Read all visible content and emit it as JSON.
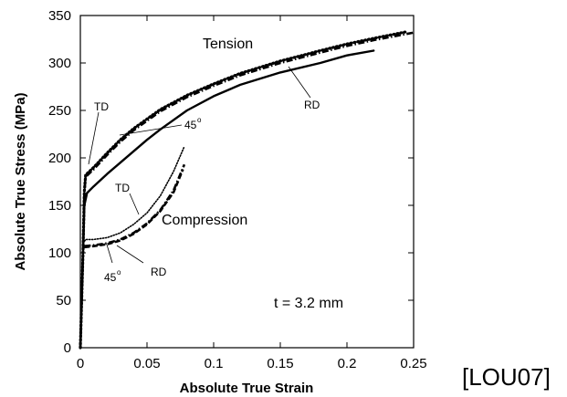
{
  "chart_data": {
    "type": "line",
    "title": "",
    "xlabel": "Absolute True  Strain",
    "ylabel": "Absolute True  Stress (MPa)",
    "xlim": [
      0,
      0.25
    ],
    "ylim": [
      0,
      350
    ],
    "xticks": [
      0,
      0.05,
      0.1,
      0.15,
      0.2,
      0.25
    ],
    "xtick_labels": [
      "0",
      "0.05",
      "0.1",
      "0.15",
      "0.2",
      "0.25"
    ],
    "yticks": [
      0,
      50,
      100,
      150,
      200,
      250,
      300,
      350
    ],
    "ytick_labels": [
      "0",
      "50",
      "100",
      "150",
      "200",
      "250",
      "300",
      "350"
    ],
    "grid": false,
    "series": [
      {
        "name": "RD",
        "group": "Tension",
        "style": "solid",
        "points": [
          [
            0,
            0
          ],
          [
            0.002,
            100
          ],
          [
            0.003,
            150
          ],
          [
            0.005,
            163
          ],
          [
            0.01,
            170
          ],
          [
            0.02,
            183
          ],
          [
            0.03,
            195
          ],
          [
            0.04,
            207
          ],
          [
            0.05,
            219
          ],
          [
            0.06,
            230
          ],
          [
            0.08,
            250
          ],
          [
            0.1,
            265
          ],
          [
            0.12,
            277
          ],
          [
            0.15,
            290
          ],
          [
            0.18,
            300
          ],
          [
            0.2,
            308
          ],
          [
            0.22,
            313
          ]
        ]
      },
      {
        "name": "TD",
        "group": "Tension",
        "style": "dotted",
        "points": [
          [
            0,
            0
          ],
          [
            0.002,
            100
          ],
          [
            0.003,
            165
          ],
          [
            0.004,
            182
          ],
          [
            0.01,
            190
          ],
          [
            0.02,
            205
          ],
          [
            0.03,
            219
          ],
          [
            0.04,
            231
          ],
          [
            0.05,
            241
          ],
          [
            0.06,
            251
          ],
          [
            0.08,
            266
          ],
          [
            0.1,
            278
          ],
          [
            0.12,
            289
          ],
          [
            0.15,
            302
          ],
          [
            0.18,
            313
          ],
          [
            0.2,
            320
          ],
          [
            0.22,
            326
          ],
          [
            0.245,
            333
          ]
        ]
      },
      {
        "name": "45°",
        "group": "Tension",
        "style": "dashdot",
        "points": [
          [
            0,
            0
          ],
          [
            0.002,
            100
          ],
          [
            0.003,
            165
          ],
          [
            0.004,
            180
          ],
          [
            0.01,
            188
          ],
          [
            0.02,
            203
          ],
          [
            0.03,
            217
          ],
          [
            0.04,
            229
          ],
          [
            0.05,
            239
          ],
          [
            0.06,
            249
          ],
          [
            0.08,
            264
          ],
          [
            0.1,
            276
          ],
          [
            0.12,
            287
          ],
          [
            0.15,
            300
          ],
          [
            0.18,
            311
          ],
          [
            0.2,
            318
          ],
          [
            0.22,
            324
          ],
          [
            0.25,
            332
          ]
        ]
      },
      {
        "name": "TD",
        "group": "Compression",
        "style": "thin-dotted",
        "points": [
          [
            0.002,
            110
          ],
          [
            0.004,
            114
          ],
          [
            0.01,
            114
          ],
          [
            0.02,
            116
          ],
          [
            0.03,
            121
          ],
          [
            0.04,
            130
          ],
          [
            0.05,
            142
          ],
          [
            0.06,
            160
          ],
          [
            0.07,
            186
          ],
          [
            0.078,
            212
          ]
        ]
      },
      {
        "name": "45°",
        "group": "Compression",
        "style": "dashdot",
        "points": [
          [
            0.003,
            107
          ],
          [
            0.01,
            108
          ],
          [
            0.02,
            110
          ],
          [
            0.03,
            114
          ],
          [
            0.04,
            121
          ],
          [
            0.05,
            131
          ],
          [
            0.06,
            145
          ],
          [
            0.07,
            166
          ],
          [
            0.078,
            193
          ]
        ]
      },
      {
        "name": "RD",
        "group": "Compression",
        "style": "dashed",
        "points": [
          [
            0.003,
            106
          ],
          [
            0.01,
            107
          ],
          [
            0.02,
            109
          ],
          [
            0.03,
            113
          ],
          [
            0.04,
            120
          ],
          [
            0.05,
            130
          ],
          [
            0.06,
            144
          ],
          [
            0.07,
            164
          ],
          [
            0.077,
            188
          ]
        ]
      }
    ],
    "annotations": {
      "tension": "Tension",
      "compression": "Compression",
      "thickness": "t = 3.2 mm",
      "tension_td": "TD",
      "tension_45": "45",
      "tension_rd": "RD",
      "comp_td": "TD",
      "comp_45": "45",
      "comp_rd": "RD",
      "degree_mark": "o"
    }
  },
  "reference_label": "[LOU07]"
}
